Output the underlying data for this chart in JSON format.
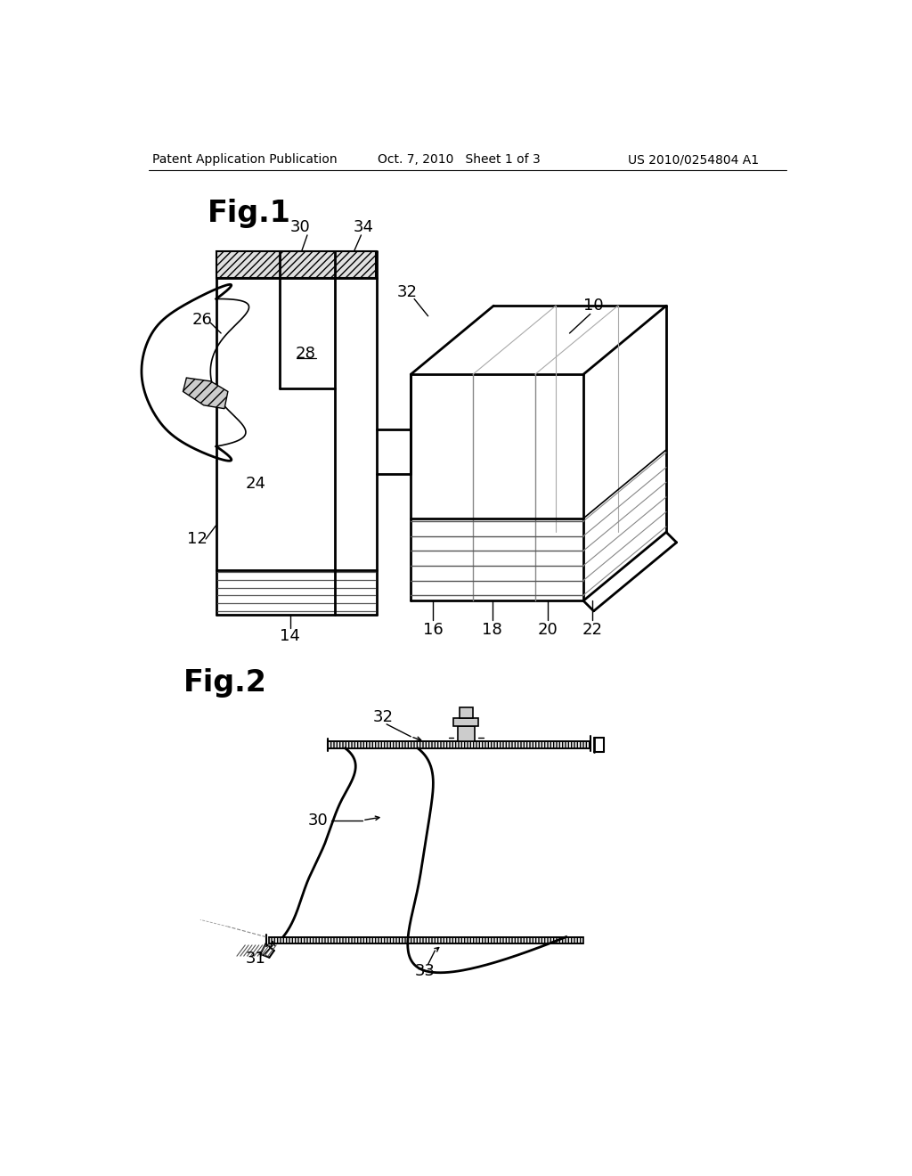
{
  "bg_color": "#ffffff",
  "header_text_left": "Patent Application Publication",
  "header_text_mid": "Oct. 7, 2010   Sheet 1 of 3",
  "header_text_right": "US 2010/0254804 A1",
  "line_color": "#000000",
  "label_fontsize": 13,
  "header_fontsize": 10,
  "figlabel_fontsize": 24
}
